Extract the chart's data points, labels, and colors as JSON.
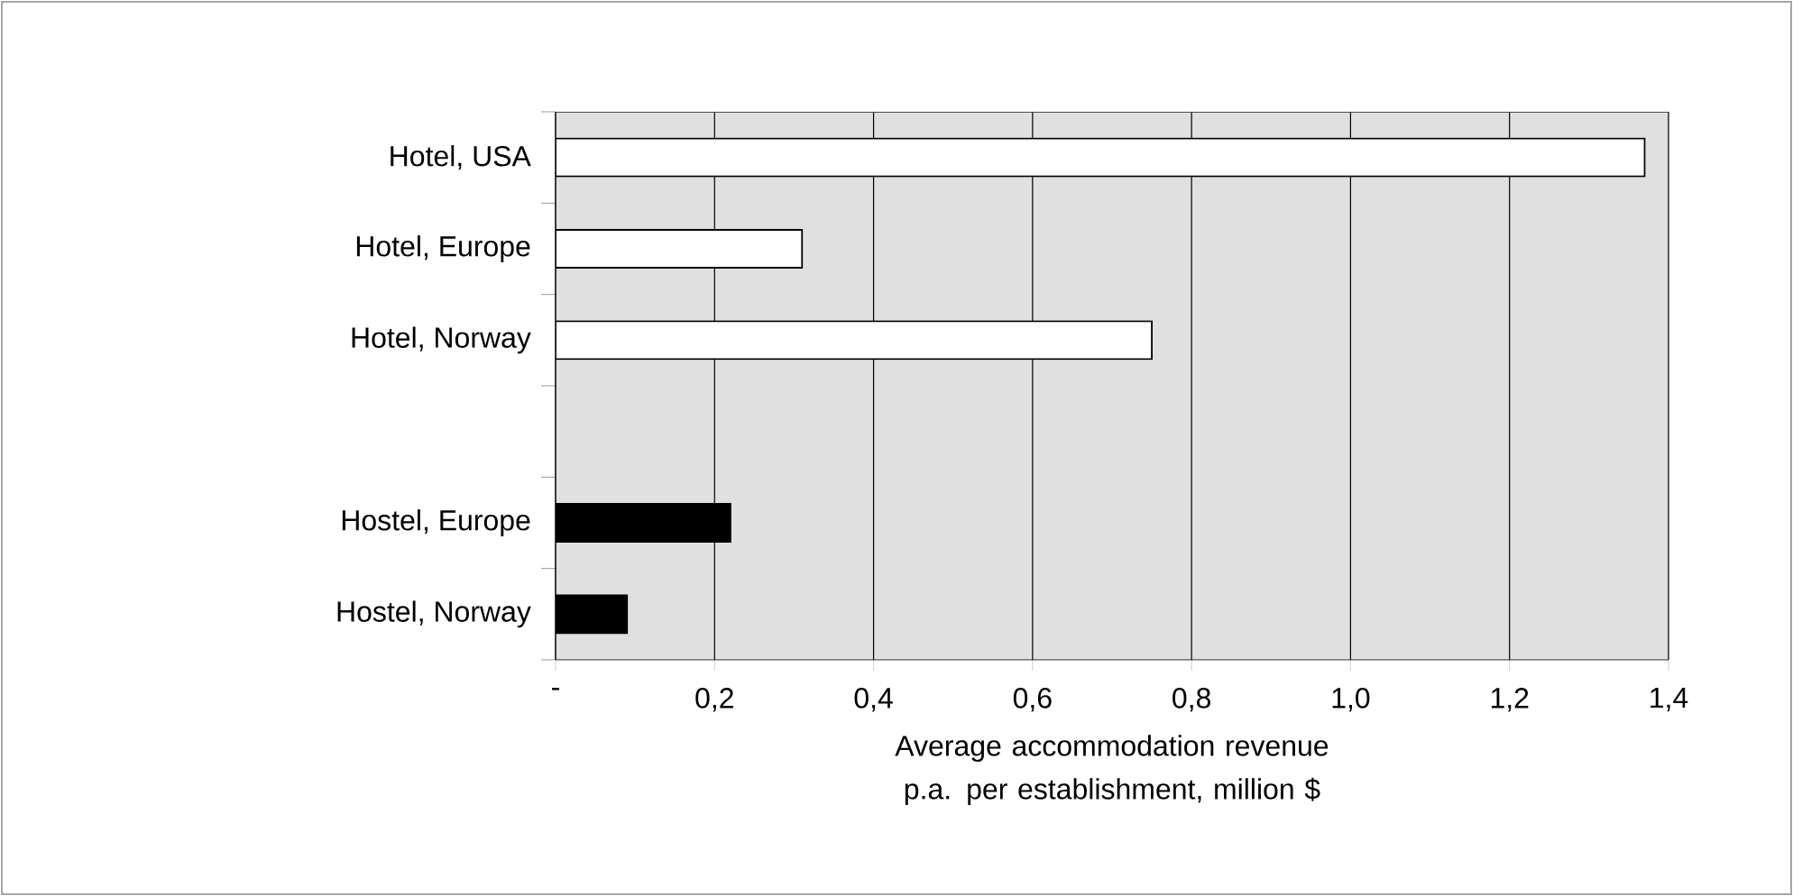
{
  "chart_data": {
    "type": "bar",
    "orientation": "horizontal",
    "categories": [
      "Hotel, USA",
      "Hotel, Europe",
      "Hotel, Norway",
      null,
      "Hostel, Europe",
      "Hostel, Norway"
    ],
    "values": [
      1.37,
      0.31,
      0.75,
      null,
      0.22,
      0.09
    ],
    "colors": [
      "#ffffff",
      "#ffffff",
      "#ffffff",
      null,
      "#000000",
      "#000000"
    ],
    "xlabel": "Average accommodation revenue p.a. per establishment, million $",
    "xlim": [
      0,
      1.4
    ],
    "xticks": [
      {
        "value": 0,
        "label": "-"
      },
      {
        "value": 0.2,
        "label": "0,2"
      },
      {
        "value": 0.4,
        "label": "0,4"
      },
      {
        "value": 0.6,
        "label": "0,6"
      },
      {
        "value": 0.8,
        "label": "0,8"
      },
      {
        "value": 1.0,
        "label": "1,0"
      },
      {
        "value": 1.2,
        "label": "1,2"
      },
      {
        "value": 1.4,
        "label": "1,4"
      }
    ],
    "grid": "x"
  }
}
